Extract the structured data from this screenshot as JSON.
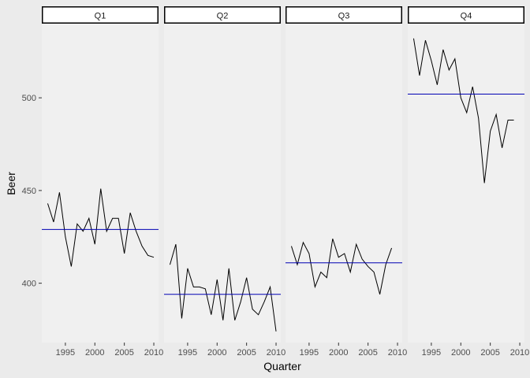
{
  "chart_data": {
    "type": "line",
    "xlabel": "Quarter",
    "ylabel": "Beer",
    "ylim": [
      368,
      540
    ],
    "xlim": [
      1991,
      2010.8
    ],
    "y_ticks": [
      400,
      450,
      500
    ],
    "x_ticks": [
      1995,
      2000,
      2005,
      2010
    ],
    "y_tick_labels": [
      "400",
      "450",
      "500"
    ],
    "x_tick_labels": [
      "1995",
      "2000",
      "2005",
      "2010"
    ],
    "grid": false,
    "colors": {
      "line": "#000000",
      "mean_line": "#0000b3",
      "panel_bg": "#f0f0f0",
      "strip_bg": "#ffffff"
    },
    "panels": [
      {
        "name": "Q1",
        "mean": 429,
        "x": [
          1992,
          1993,
          1994,
          1995,
          1996,
          1997,
          1998,
          1999,
          2000,
          2001,
          2002,
          2003,
          2004,
          2005,
          2006,
          2007,
          2008,
          2009,
          2010
        ],
        "values": [
          443,
          433,
          449,
          425,
          409,
          432,
          428,
          435,
          421,
          451,
          428,
          435,
          435,
          416,
          438,
          428,
          420,
          415,
          414
        ]
      },
      {
        "name": "Q2",
        "mean": 394,
        "x": [
          1992,
          1993,
          1994,
          1995,
          1996,
          1997,
          1998,
          1999,
          2000,
          2001,
          2002,
          2003,
          2004,
          2005,
          2006,
          2007,
          2008,
          2009,
          2010
        ],
        "values": [
          410,
          421,
          381,
          408,
          398,
          398,
          397,
          383,
          402,
          380,
          408,
          380,
          390,
          403,
          386,
          383,
          390,
          398,
          374
        ]
      },
      {
        "name": "Q3",
        "mean": 411,
        "x": [
          1992,
          1993,
          1994,
          1995,
          1996,
          1997,
          1998,
          1999,
          2000,
          2001,
          2002,
          2003,
          2004,
          2005,
          2006,
          2007,
          2008,
          2009
        ],
        "values": [
          420,
          410,
          422,
          416,
          398,
          406,
          403,
          424,
          414,
          416,
          406,
          421,
          413,
          409,
          406,
          394,
          410,
          419
        ]
      },
      {
        "name": "Q4",
        "mean": 502,
        "x": [
          1992,
          1993,
          1994,
          1995,
          1996,
          1997,
          1998,
          1999,
          2000,
          2001,
          2002,
          2003,
          2004,
          2005,
          2006,
          2007,
          2008,
          2009
        ],
        "values": [
          532,
          512,
          531,
          520,
          507,
          526,
          515,
          521,
          500,
          492,
          506,
          489,
          454,
          482,
          491,
          473,
          488,
          488
        ]
      }
    ]
  }
}
